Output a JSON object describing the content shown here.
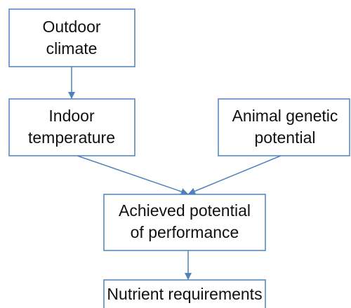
{
  "nodes": [
    {
      "lines": [
        "Outdoor",
        "climate"
      ]
    },
    {
      "lines": [
        "Indoor",
        "temperature"
      ]
    },
    {
      "lines": [
        "Animal genetic",
        "potential"
      ]
    },
    {
      "lines": [
        "Achieved potential",
        "of performance"
      ]
    },
    {
      "lines": [
        "Nutrient requirements"
      ]
    }
  ]
}
